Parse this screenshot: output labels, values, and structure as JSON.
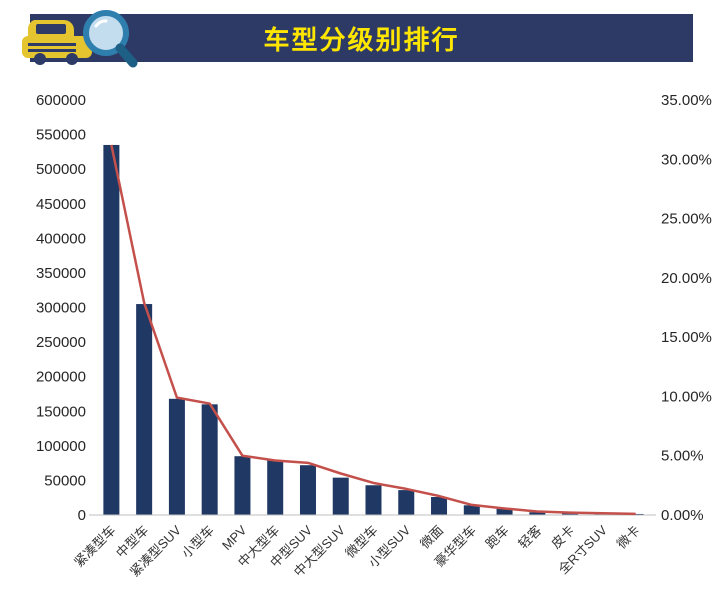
{
  "header": {
    "title": "车型分级别排行"
  },
  "colors": {
    "header_bg": "#2D3A66",
    "title_color": "#FFE600",
    "bar_color": "#1F3864",
    "line_color": "#C4504B",
    "axis_text": "#262626"
  },
  "chart_data": {
    "type": "bar",
    "combo": "bar+line",
    "title": "车型分级别排行",
    "categories": [
      "紧凑型车",
      "中型车",
      "紧凑型SUV",
      "小型车",
      "MPV",
      "中大型车",
      "中型SUV",
      "中大型SUV",
      "微型车",
      "小型SUV",
      "微面",
      "豪华型车",
      "跑车",
      "轻客",
      "皮卡",
      "全R寸SUV",
      "微卡"
    ],
    "series": [
      {
        "type": "bar",
        "axis": "left",
        "color": "#1F3864",
        "values": [
          535000,
          305000,
          168000,
          160000,
          85000,
          79000,
          72000,
          54000,
          43000,
          36000,
          26000,
          14000,
          9000,
          4000,
          3000,
          2000,
          1500
        ]
      },
      {
        "type": "line",
        "axis": "right",
        "color": "#C4504B",
        "values": [
          31.2,
          17.9,
          9.9,
          9.4,
          5.0,
          4.6,
          4.4,
          3.5,
          2.7,
          2.2,
          1.6,
          0.85,
          0.55,
          0.3,
          0.2,
          0.15,
          0.1
        ]
      }
    ],
    "left_axis": {
      "min": 0,
      "max": 600000,
      "step": 50000,
      "tick_labels": [
        "600000",
        "550000",
        "500000",
        "450000",
        "400000",
        "350000",
        "300000",
        "250000",
        "200000",
        "150000",
        "100000",
        "50000",
        "0"
      ]
    },
    "right_axis": {
      "min": 0,
      "max": 35,
      "step": 5,
      "tick_labels": [
        "35.00%",
        "30.00%",
        "25.00%",
        "20.00%",
        "15.00%",
        "10.00%",
        "5.00%",
        "0.00%"
      ]
    },
    "grid": false,
    "legend": "none"
  }
}
